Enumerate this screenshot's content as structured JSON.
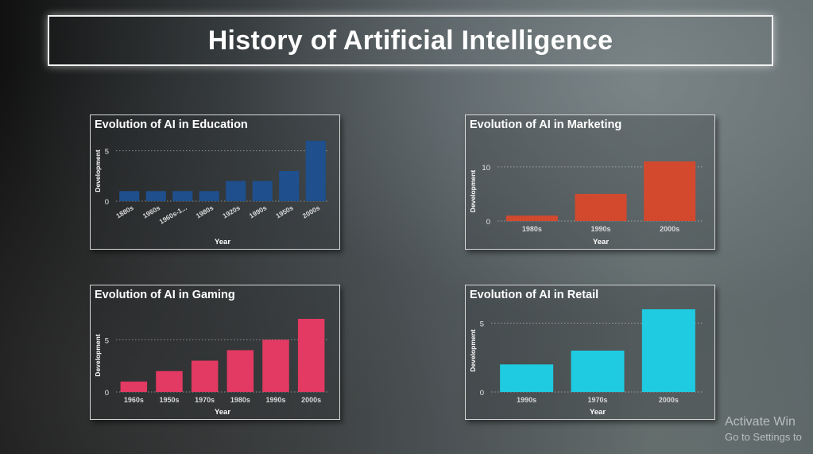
{
  "page": {
    "title": "History of Artificial Intelligence"
  },
  "chart_data": [
    {
      "id": "education",
      "type": "bar",
      "title": "Evolution of AI in Education",
      "xlabel": "Year",
      "ylabel": "Development",
      "categories": [
        "1880s",
        "1960s",
        "1960s-1...",
        "1980s",
        "1920s",
        "1990s",
        "1950s",
        "2000s"
      ],
      "values": [
        1,
        1,
        1,
        1,
        2,
        2,
        3,
        6
      ],
      "yticks": [
        0,
        5
      ],
      "ylim": [
        0,
        6
      ],
      "color": "#1f4f8c",
      "rotated_labels": true,
      "grid": true
    },
    {
      "id": "marketing",
      "type": "bar",
      "title": "Evolution of AI in Marketing",
      "xlabel": "Year",
      "ylabel": "Development",
      "categories": [
        "1980s",
        "1990s",
        "2000s"
      ],
      "values": [
        1,
        5,
        11
      ],
      "yticks": [
        0,
        10
      ],
      "ylim": [
        0,
        11
      ],
      "color": "#d2492e",
      "rotated_labels": false,
      "grid": true
    },
    {
      "id": "gaming",
      "type": "bar",
      "title": "Evolution of AI in Gaming",
      "xlabel": "Year",
      "ylabel": "Development",
      "categories": [
        "1960s",
        "1950s",
        "1970s",
        "1980s",
        "1990s",
        "2000s"
      ],
      "values": [
        1,
        2,
        3,
        4,
        5,
        7
      ],
      "yticks": [
        0,
        5
      ],
      "ylim": [
        0,
        7
      ],
      "color": "#e23a62",
      "rotated_labels": false,
      "grid": true
    },
    {
      "id": "retail",
      "type": "bar",
      "title": "Evolution of AI in Retail",
      "xlabel": "Year",
      "ylabel": "Development",
      "categories": [
        "1990s",
        "1970s",
        "2000s"
      ],
      "values": [
        2,
        3,
        6
      ],
      "yticks": [
        0,
        5
      ],
      "ylim": [
        0,
        6
      ],
      "color": "#1ecbe1",
      "rotated_labels": false,
      "grid": true
    }
  ],
  "watermark": {
    "line1": "Activate Win",
    "line2": "Go to Settings to"
  }
}
